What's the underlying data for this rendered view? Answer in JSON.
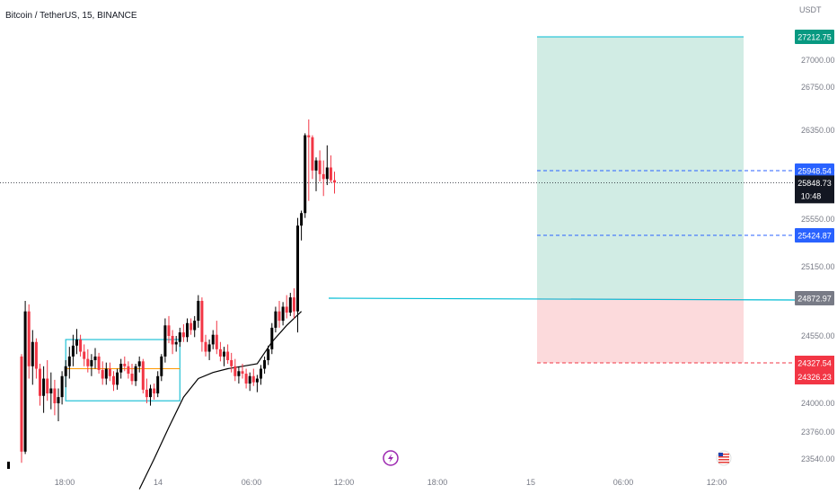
{
  "header": {
    "title": "Bitcoin / TetherUS, 15, BINANCE"
  },
  "colors": {
    "up": "#000000",
    "down": "#f23645",
    "profit_zone": "#d1ece4",
    "loss_zone": "#fcdadc",
    "entry_line": "#00bcd4",
    "target_line": "#2962ff",
    "stop_line": "#f23645",
    "ma_line": "#000000",
    "box": "#22c1d6",
    "box_mid": "#ff9800",
    "axis_text": "#787b86",
    "badge_green": "#089981",
    "badge_blue": "#2962ff",
    "badge_red": "#f23645",
    "badge_gray": "#787b86",
    "badge_black": "#131722"
  },
  "icons": {
    "event_left": "lightning-icon",
    "event_right": "us-flag-icon"
  },
  "chart_data": {
    "type": "candlestick",
    "title": "Bitcoin / TetherUS, 15, BINANCE",
    "currency": "USDT",
    "x_axis": {
      "tick_labels": [
        "18:00",
        "14",
        "06:00",
        "12:00",
        "18:00",
        "15",
        "06:00",
        "12:00"
      ]
    },
    "y_axis": {
      "tick_labels": [
        "27000.00",
        "26750.00",
        "26350.00",
        "25950.00",
        "25550.00",
        "25150.00",
        "24550.00",
        "24000.00",
        "23760.00",
        "23540.00"
      ]
    },
    "price_labels": {
      "target": "27212.75",
      "level_upper": "25948.54",
      "last": "25848.73",
      "countdown": "10:48",
      "level_lower": "25424.87",
      "entry": "24872.97",
      "stop": "24327.54",
      "stop_alt": "24326.23"
    },
    "candles": [
      [
        24380,
        24400,
        23510,
        23600
      ],
      [
        23600,
        24850,
        23580,
        24760
      ],
      [
        24760,
        24820,
        24200,
        24300
      ],
      [
        24300,
        24600,
        24150,
        24500
      ],
      [
        24500,
        24530,
        24200,
        24280
      ],
      [
        24280,
        24320,
        23980,
        24060
      ],
      [
        24060,
        24300,
        23920,
        24200
      ],
      [
        24200,
        24350,
        24020,
        24080
      ],
      [
        24080,
        24250,
        23950,
        24120
      ],
      [
        24120,
        24190,
        23900,
        24000
      ],
      [
        24000,
        24120,
        23850,
        24050
      ],
      [
        24050,
        24260,
        23990,
        24220
      ],
      [
        24220,
        24350,
        24130,
        24300
      ],
      [
        24300,
        24460,
        24200,
        24380
      ],
      [
        24380,
        24560,
        24300,
        24470
      ],
      [
        24470,
        24610,
        24400,
        24520
      ],
      [
        24520,
        24560,
        24380,
        24420
      ],
      [
        24420,
        24480,
        24300,
        24360
      ],
      [
        24360,
        24440,
        24250,
        24300
      ],
      [
        24300,
        24400,
        24220,
        24350
      ],
      [
        24350,
        24450,
        24280,
        24380
      ],
      [
        24380,
        24410,
        24240,
        24270
      ],
      [
        24270,
        24340,
        24150,
        24200
      ],
      [
        24200,
        24330,
        24150,
        24280
      ],
      [
        24280,
        24330,
        24180,
        24220
      ],
      [
        24220,
        24260,
        24100,
        24150
      ],
      [
        24150,
        24280,
        24110,
        24250
      ],
      [
        24250,
        24360,
        24200,
        24320
      ],
      [
        24320,
        24380,
        24260,
        24300
      ],
      [
        24300,
        24340,
        24200,
        24240
      ],
      [
        24240,
        24320,
        24150,
        24180
      ],
      [
        24180,
        24320,
        24140,
        24300
      ],
      [
        24300,
        24380,
        24250,
        24340
      ],
      [
        24340,
        24360,
        24080,
        24110
      ],
      [
        24110,
        24200,
        24000,
        24050
      ],
      [
        24050,
        24150,
        23980,
        24120
      ],
      [
        24120,
        24160,
        24030,
        24080
      ],
      [
        24080,
        24260,
        24050,
        24220
      ],
      [
        24220,
        24400,
        24180,
        24380
      ],
      [
        24380,
        24700,
        24330,
        24640
      ],
      [
        24640,
        24720,
        24490,
        24550
      ],
      [
        24550,
        24600,
        24400,
        24480
      ],
      [
        24480,
        24550,
        24420,
        24500
      ],
      [
        24500,
        24620,
        24460,
        24580
      ],
      [
        24580,
        24650,
        24500,
        24540
      ],
      [
        24540,
        24700,
        24500,
        24660
      ],
      [
        24660,
        24700,
        24560,
        24600
      ],
      [
        24600,
        24720,
        24540,
        24680
      ],
      [
        24680,
        24900,
        24620,
        24850
      ],
      [
        24850,
        24880,
        24420,
        24500
      ],
      [
        24500,
        24560,
        24380,
        24420
      ],
      [
        24420,
        24520,
        24350,
        24480
      ],
      [
        24480,
        24600,
        24440,
        24560
      ],
      [
        24560,
        24680,
        24400,
        24440
      ],
      [
        24440,
        24500,
        24340,
        24380
      ],
      [
        24380,
        24460,
        24300,
        24420
      ],
      [
        24420,
        24480,
        24320,
        24350
      ],
      [
        24350,
        24410,
        24250,
        24300
      ],
      [
        24300,
        24360,
        24180,
        24220
      ],
      [
        24220,
        24300,
        24160,
        24260
      ],
      [
        24260,
        24320,
        24200,
        24240
      ],
      [
        24240,
        24280,
        24120,
        24160
      ],
      [
        24160,
        24250,
        24100,
        24220
      ],
      [
        24220,
        24280,
        24140,
        24170
      ],
      [
        24170,
        24230,
        24090,
        24200
      ],
      [
        24200,
        24310,
        24150,
        24280
      ],
      [
        24280,
        24380,
        24240,
        24350
      ],
      [
        24350,
        24470,
        24310,
        24440
      ],
      [
        24440,
        24660,
        24400,
        24620
      ],
      [
        24620,
        24800,
        24580,
        24760
      ],
      [
        24760,
        24850,
        24620,
        24680
      ],
      [
        24680,
        24840,
        24640,
        24800
      ],
      [
        24800,
        24900,
        24700,
        24750
      ],
      [
        24750,
        24920,
        24720,
        24880
      ],
      [
        24880,
        24960,
        24700,
        24760
      ],
      [
        24760,
        25560,
        24580,
        25500
      ],
      [
        25500,
        25620,
        25380,
        25600
      ],
      [
        25600,
        26320,
        25560,
        26300
      ],
      [
        26300,
        26450,
        25700,
        26280
      ],
      [
        26280,
        26300,
        25880,
        25950
      ],
      [
        25950,
        26080,
        25780,
        26050
      ],
      [
        26050,
        26150,
        25860,
        25920
      ],
      [
        25920,
        26050,
        25740,
        25880
      ],
      [
        25880,
        26200,
        25830,
        25980
      ],
      [
        25980,
        26100,
        25850,
        25870
      ],
      [
        25870,
        25940,
        25760,
        25850
      ]
    ],
    "moving_average": [
      [
        32,
        23300
      ],
      [
        36,
        23540
      ],
      [
        40,
        23800
      ],
      [
        44,
        24050
      ],
      [
        48,
        24200
      ],
      [
        52,
        24250
      ],
      [
        56,
        24280
      ],
      [
        60,
        24300
      ],
      [
        64,
        24320
      ],
      [
        68,
        24500
      ],
      [
        72,
        24640
      ],
      [
        76,
        24760
      ]
    ],
    "range_box": {
      "start": 12,
      "end": 43,
      "high": 24520,
      "low": 24020,
      "mid": 24280
    },
    "position": {
      "entry": 24872.97,
      "target": 27212.75,
      "stop": 24327.54,
      "upper_level": 25948.54,
      "lower_level": 25424.87
    }
  }
}
